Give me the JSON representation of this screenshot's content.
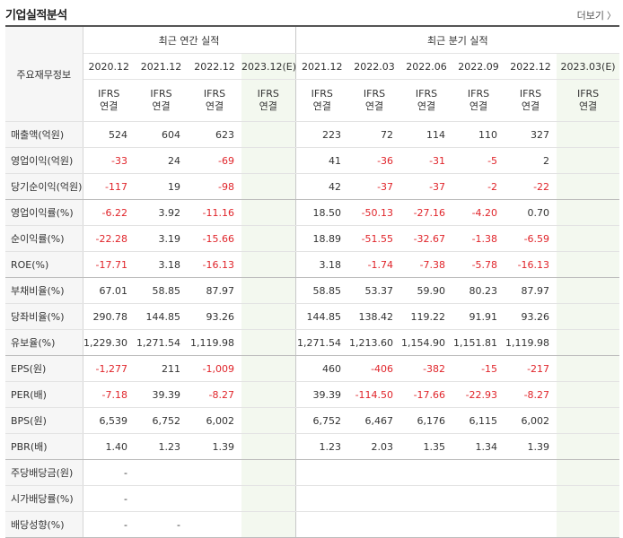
{
  "title": "기업실적분석",
  "more_label": "더보기",
  "label_header": "주요재무정보",
  "annual_group": "최근 연간 실적",
  "quarter_group": "최근 분기 실적",
  "colors": {
    "negative": "#e0242a",
    "ifrs": "#e06a1a",
    "estimate_bg": "#f3f8ef"
  },
  "annual_periods": [
    "2020.12",
    "2021.12",
    "2022.12",
    "2023.12(E)"
  ],
  "quarter_periods": [
    "2021.12",
    "2022.03",
    "2022.06",
    "2022.09",
    "2022.12",
    "2023.03(E)"
  ],
  "ifrs_line1": "IFRS",
  "ifrs_line2": "연결",
  "rows": [
    {
      "label": "매출액(억원)",
      "values": [
        "524",
        "604",
        "623",
        "",
        "223",
        "72",
        "114",
        "110",
        "327",
        ""
      ]
    },
    {
      "label": "영업이익(억원)",
      "values": [
        "-33",
        "24",
        "-69",
        "",
        "41",
        "-36",
        "-31",
        "-5",
        "2",
        ""
      ]
    },
    {
      "label": "당기순이익(억원)",
      "values": [
        "-117",
        "19",
        "-98",
        "",
        "42",
        "-37",
        "-37",
        "-2",
        "-22",
        ""
      ]
    },
    {
      "label": "영업이익률(%)",
      "values": [
        "-6.22",
        "3.92",
        "-11.16",
        "",
        "18.50",
        "-50.13",
        "-27.16",
        "-4.20",
        "0.70",
        ""
      ]
    },
    {
      "label": "순이익률(%)",
      "values": [
        "-22.28",
        "3.19",
        "-15.66",
        "",
        "18.89",
        "-51.55",
        "-32.67",
        "-1.38",
        "-6.59",
        ""
      ]
    },
    {
      "label": "ROE(%)",
      "values": [
        "-17.71",
        "3.18",
        "-16.13",
        "",
        "3.18",
        "-1.74",
        "-7.38",
        "-5.78",
        "-16.13",
        ""
      ]
    },
    {
      "label": "부채비율(%)",
      "values": [
        "67.01",
        "58.85",
        "87.97",
        "",
        "58.85",
        "53.37",
        "59.90",
        "80.23",
        "87.97",
        ""
      ]
    },
    {
      "label": "당좌비율(%)",
      "values": [
        "290.78",
        "144.85",
        "93.26",
        "",
        "144.85",
        "138.42",
        "119.22",
        "91.91",
        "93.26",
        ""
      ]
    },
    {
      "label": "유보율(%)",
      "values": [
        "1,229.30",
        "1,271.54",
        "1,119.98",
        "",
        "1,271.54",
        "1,213.60",
        "1,154.90",
        "1,151.81",
        "1,119.98",
        ""
      ]
    },
    {
      "label": "EPS(원)",
      "values": [
        "-1,277",
        "211",
        "-1,009",
        "",
        "460",
        "-406",
        "-382",
        "-15",
        "-217",
        ""
      ]
    },
    {
      "label": "PER(배)",
      "values": [
        "-7.18",
        "39.39",
        "-8.27",
        "",
        "39.39",
        "-114.50",
        "-17.66",
        "-22.93",
        "-8.27",
        ""
      ]
    },
    {
      "label": "BPS(원)",
      "values": [
        "6,539",
        "6,752",
        "6,002",
        "",
        "6,752",
        "6,467",
        "6,176",
        "6,115",
        "6,002",
        ""
      ]
    },
    {
      "label": "PBR(배)",
      "values": [
        "1.40",
        "1.23",
        "1.39",
        "",
        "1.23",
        "2.03",
        "1.35",
        "1.34",
        "1.39",
        ""
      ]
    },
    {
      "label": "주당배당금(원)",
      "values": [
        "-",
        "",
        "",
        "",
        "",
        "",
        "",
        "",
        "",
        ""
      ]
    },
    {
      "label": "시가배당률(%)",
      "values": [
        "-",
        "",
        "",
        "",
        "",
        "",
        "",
        "",
        "",
        ""
      ]
    },
    {
      "label": "배당성향(%)",
      "values": [
        "-",
        "-",
        "",
        "",
        "",
        "",
        "",
        "",
        "",
        ""
      ]
    }
  ]
}
